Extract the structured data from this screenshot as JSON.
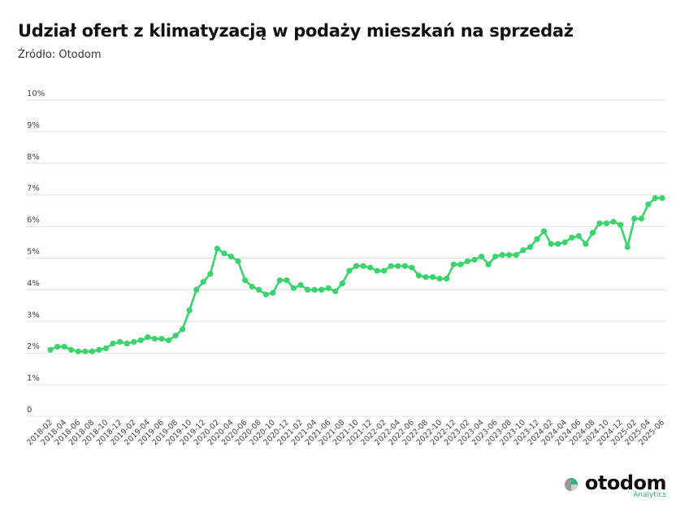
{
  "header": {
    "title": "Udział ofert z klimatyzacją w podaży mieszkań na sprzedaż",
    "subtitle": "Źródło: Otodom"
  },
  "logo": {
    "wordmark": "otodom",
    "subline": "Analytics",
    "colors": {
      "green": "#2bb673",
      "gray": "#9a9a9a"
    }
  },
  "chart_data": {
    "type": "line",
    "color": "#3ad36c",
    "grid": true,
    "ylim": [
      0,
      10
    ],
    "y_ticks": [
      "0",
      "1%",
      "2%",
      "3%",
      "4%",
      "5%",
      "6%",
      "7%",
      "8%",
      "9%",
      "10%"
    ],
    "x_tick_labels": [
      "2018-02",
      "2018-04",
      "2018-06",
      "2018-08",
      "2018-10",
      "2018-12",
      "2019-02",
      "2019-04",
      "2019-06",
      "2019-08",
      "2019-10",
      "2019-12",
      "2020-02",
      "2020-04",
      "2020-06",
      "2020-08",
      "2020-10",
      "2020-12",
      "2021-02",
      "2021-04",
      "2021-06",
      "2021-08",
      "2021-10",
      "2021-12",
      "2022-02",
      "2022-04",
      "2022-06",
      "2022-08",
      "2022-10",
      "2022-12",
      "2023-02",
      "2023-04",
      "2023-06",
      "2023-08",
      "2023-10",
      "2023-12",
      "2024-02",
      "2024-04",
      "2024-06",
      "2024-08",
      "2024-10",
      "2024-12",
      "2025-02",
      "2025-04",
      "2025-06"
    ],
    "x": [
      "2018-02",
      "2018-03",
      "2018-04",
      "2018-05",
      "2018-06",
      "2018-07",
      "2018-08",
      "2018-09",
      "2018-10",
      "2018-11",
      "2018-12",
      "2019-01",
      "2019-02",
      "2019-03",
      "2019-04",
      "2019-05",
      "2019-06",
      "2019-07",
      "2019-08",
      "2019-09",
      "2019-10",
      "2019-11",
      "2019-12",
      "2020-01",
      "2020-02",
      "2020-03",
      "2020-04",
      "2020-05",
      "2020-06",
      "2020-07",
      "2020-08",
      "2020-09",
      "2020-10",
      "2020-11",
      "2020-12",
      "2021-01",
      "2021-02",
      "2021-03",
      "2021-04",
      "2021-05",
      "2021-06",
      "2021-07",
      "2021-08",
      "2021-09",
      "2021-10",
      "2021-11",
      "2021-12",
      "2022-01",
      "2022-02",
      "2022-03",
      "2022-04",
      "2022-05",
      "2022-06",
      "2022-07",
      "2022-08",
      "2022-09",
      "2022-10",
      "2022-11",
      "2022-12",
      "2023-01",
      "2023-02",
      "2023-03",
      "2023-04",
      "2023-05",
      "2023-06",
      "2023-07",
      "2023-08",
      "2023-09",
      "2023-10",
      "2023-11",
      "2023-12",
      "2024-01",
      "2024-02",
      "2024-03",
      "2024-04",
      "2024-05",
      "2024-06",
      "2024-07",
      "2024-08",
      "2024-09",
      "2024-10",
      "2024-11",
      "2024-12",
      "2025-01",
      "2025-02",
      "2025-03",
      "2025-04",
      "2025-05",
      "2025-06"
    ],
    "values": [
      2.1,
      2.2,
      2.2,
      2.1,
      2.05,
      2.05,
      2.05,
      2.1,
      2.15,
      2.3,
      2.35,
      2.3,
      2.35,
      2.4,
      2.5,
      2.45,
      2.45,
      2.4,
      2.55,
      2.75,
      3.35,
      4.0,
      4.25,
      4.5,
      5.3,
      5.15,
      5.05,
      4.9,
      4.3,
      4.1,
      4.0,
      3.85,
      3.9,
      4.3,
      4.3,
      4.05,
      4.15,
      4.0,
      4.0,
      4.0,
      4.05,
      3.95,
      4.2,
      4.6,
      4.75,
      4.75,
      4.7,
      4.6,
      4.6,
      4.75,
      4.75,
      4.75,
      4.7,
      4.45,
      4.4,
      4.4,
      4.35,
      4.35,
      4.8,
      4.8,
      4.9,
      4.95,
      5.05,
      4.8,
      5.05,
      5.1,
      5.1,
      5.1,
      5.25,
      5.35,
      5.6,
      5.85,
      5.45,
      5.45,
      5.5,
      5.65,
      5.7,
      5.45,
      5.8,
      6.1,
      6.1,
      6.15,
      6.05,
      5.35,
      6.25,
      6.25,
      6.7,
      6.9,
      6.9
    ]
  }
}
